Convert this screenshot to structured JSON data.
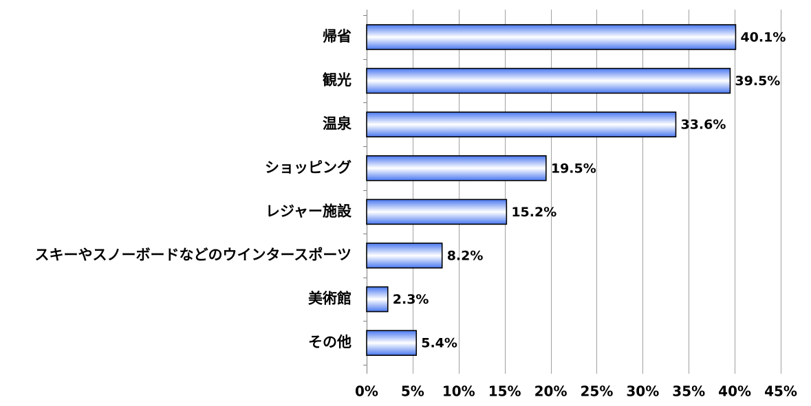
{
  "chart_data": {
    "type": "bar",
    "orientation": "horizontal",
    "title": "",
    "xlabel": "",
    "ylabel": "",
    "categories": [
      "帰省",
      "観光",
      "温泉",
      "ショッピング",
      "レジャー施設",
      "スキーやスノーボードなどのウインタースポーツ",
      "美術館",
      "その他"
    ],
    "values": [
      40.1,
      39.5,
      33.6,
      19.5,
      15.2,
      8.2,
      2.3,
      5.4
    ],
    "value_labels": [
      "40.1%",
      "39.5%",
      "33.6%",
      "19.5%",
      "15.2%",
      "8.2%",
      "2.3%",
      "5.4%"
    ],
    "xlim": [
      0,
      45
    ],
    "x_ticks": [
      0,
      5,
      10,
      15,
      20,
      25,
      30,
      35,
      40,
      45
    ],
    "x_tick_labels": [
      "0%",
      "5%",
      "10%",
      "15%",
      "20%",
      "25%",
      "30%",
      "35%",
      "40%",
      "45%"
    ],
    "grid": "vertical",
    "legend": "none",
    "bar_color": "#4a78f0",
    "bar_highlight": "#ffffff",
    "bar_edge": "#000000"
  }
}
